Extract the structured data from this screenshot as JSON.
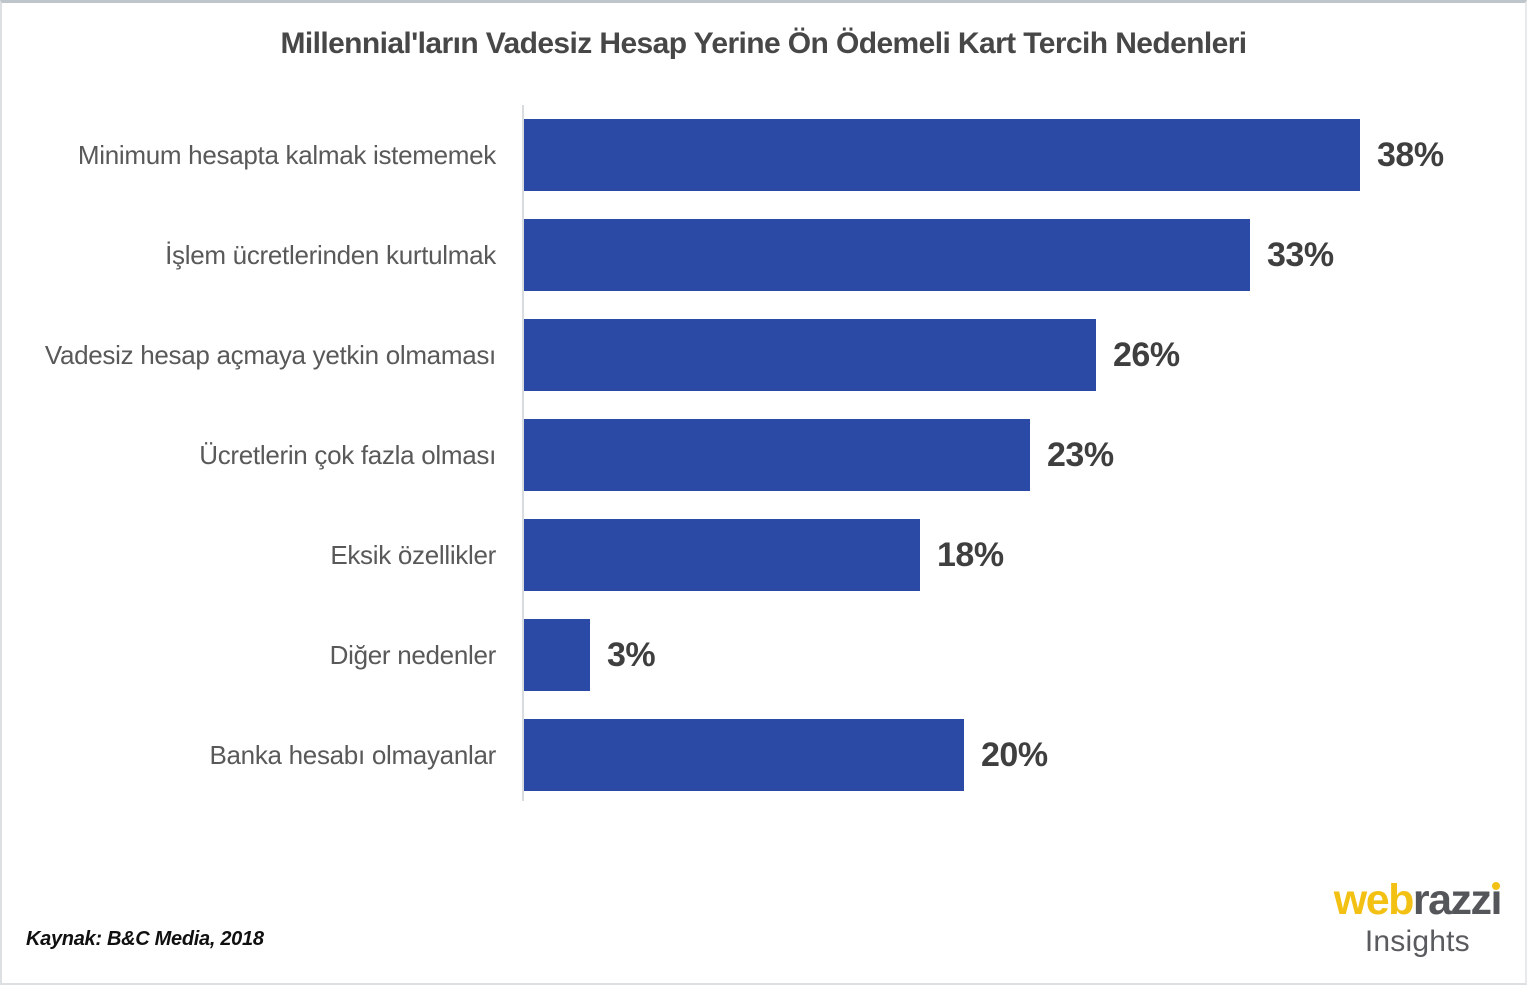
{
  "title": "Millennial'ların Vadesiz Hesap Yerine Ön Ödemeli Kart Tercih Nedenleri",
  "source": "Kaynak: B&C Media, 2018",
  "logo": {
    "part_web": "web",
    "part_razzi_head": "razz",
    "part_razzi_tail": "ı",
    "subtitle": "Insights",
    "yellow": "#f2c114",
    "gray": "#55565a"
  },
  "colors": {
    "bar": "#2b4aa6",
    "axis_line": "#d9dcde",
    "category_label": "#595959",
    "value_label": "#3f3f3f",
    "title": "#474747"
  },
  "chart_data": {
    "type": "bar",
    "orientation": "horizontal",
    "title": "Millennial'ların Vadesiz Hesap Yerine Ön Ödemeli Kart Tercih Nedenleri",
    "xlabel": "",
    "ylabel": "",
    "xlim": [
      0,
      43
    ],
    "grid": false,
    "legend": false,
    "bar_color": "#2b4aa6",
    "categories": [
      "Minimum hesapta kalmak istememek",
      "İşlem ücretlerinden kurtulmak",
      "Vadesiz hesap açmaya yetkin olmaması",
      "Ücretlerin çok fazla olması",
      "Eksik özellikler",
      "Diğer nedenler",
      "Banka hesabı olmayanlar"
    ],
    "values": [
      38,
      33,
      26,
      23,
      18,
      3,
      20
    ],
    "value_labels": [
      "38%",
      "33%",
      "26%",
      "23%",
      "18%",
      "3%",
      "20%"
    ]
  }
}
